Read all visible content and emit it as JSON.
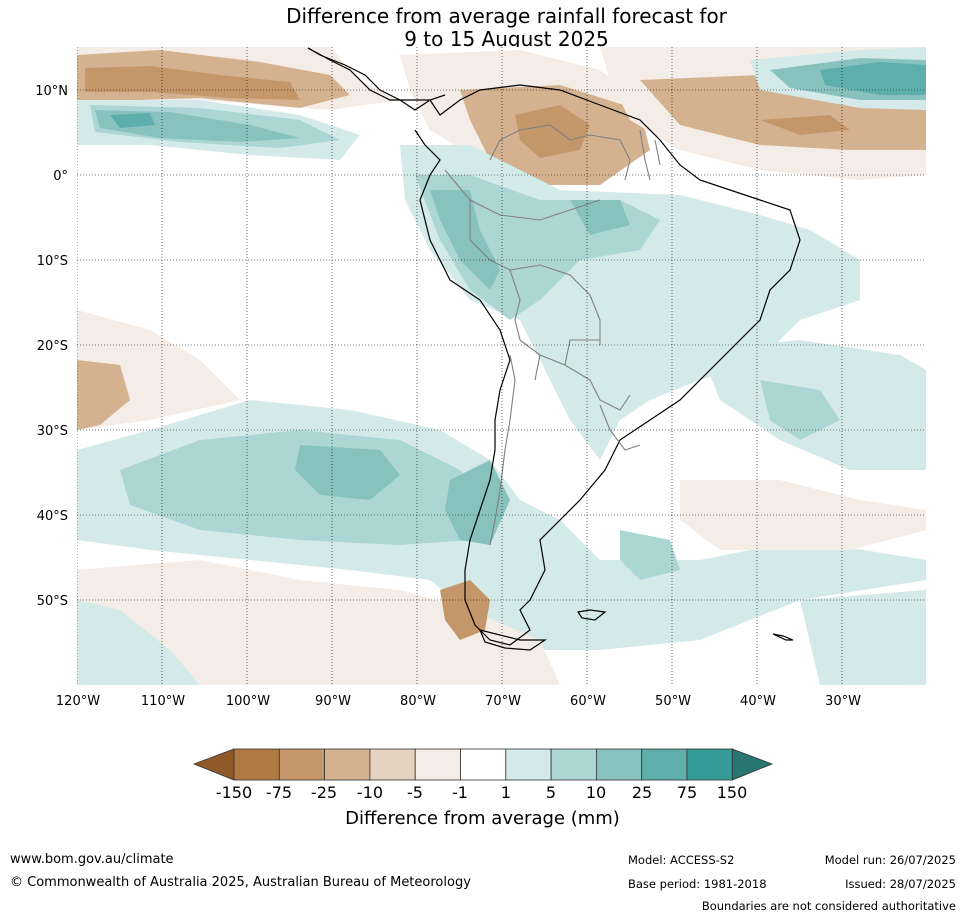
{
  "title": {
    "line1": "Difference from average rainfall forecast for",
    "line2": "9 to 15 August 2025"
  },
  "map": {
    "lat_labels": [
      "10°N",
      "0°",
      "10°S",
      "20°S",
      "30°S",
      "40°S",
      "50°S"
    ],
    "lon_labels": [
      "120°W",
      "110°W",
      "100°W",
      "90°W",
      "80°W",
      "70°W",
      "60°W",
      "50°W",
      "40°W",
      "30°W"
    ]
  },
  "legend": {
    "title": "Difference from average (mm)",
    "labels": [
      "-150",
      "-75",
      "-25",
      "-10",
      "-5",
      "-1",
      "1",
      "5",
      "10",
      "25",
      "75",
      "150"
    ],
    "colors": {
      "lt_-150": "#8f5a28",
      "-150_-75": "#b07a42",
      "-75_-25": "#c4976a",
      "-25_-10": "#d4b290",
      "-10_-5": "#e6d2c0",
      "-5_-1": "#f4ece6",
      "-1_1": "#ffffff",
      "1_5": "#d4eae8",
      "5_10": "#acd6d4",
      "10_25": "#87c2bf",
      "25_75": "#5eaeab",
      "75_150": "#369b97",
      "gt_150": "#287572"
    }
  },
  "footer": {
    "site": "www.bom.gov.au/climate",
    "copyright": "© Commonwealth of Australia 2025, Australian Bureau of Meteorology",
    "model": "Model: ACCESS-S2",
    "base_period": "Base period: 1981-2018",
    "model_run": "Model run: 26/07/2025",
    "issued": "Issued: 28/07/2025",
    "disclaimer": "Boundaries are not considered authoritative"
  }
}
